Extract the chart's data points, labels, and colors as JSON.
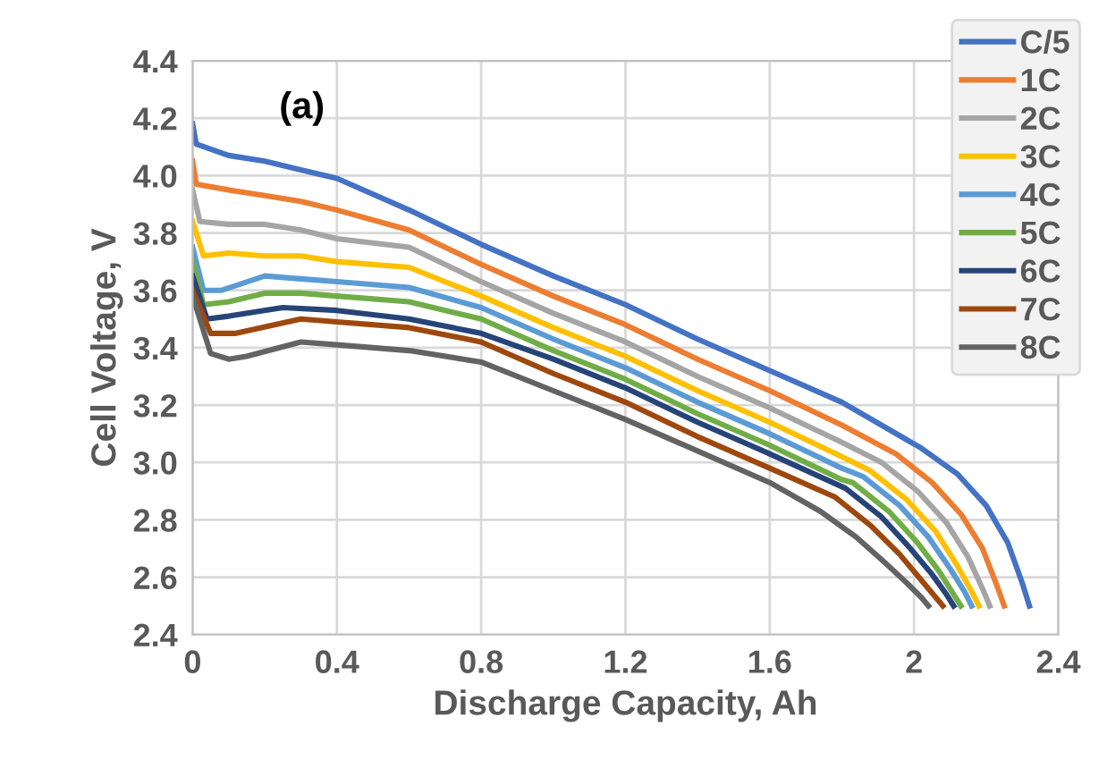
{
  "chart_data": {
    "type": "line",
    "xlabel": "Discharge Capacity, Ah",
    "ylabel": "Cell Voltage, V",
    "annotations": [
      "(a)"
    ],
    "xlim": [
      0,
      2.4
    ],
    "xticks": [
      0,
      0.4,
      0.8,
      1.2,
      1.6,
      2,
      2.4
    ],
    "ylim": [
      2.4,
      4.4
    ],
    "yticks": [
      2.4,
      2.6,
      2.8,
      {
        "value": 3,
        "label": "3.0"
      },
      3.2,
      3.4,
      3.6,
      3.8,
      {
        "value": 4,
        "label": "4.0"
      },
      4.2,
      4.4
    ],
    "grid": true,
    "legend": "right",
    "marker": "none",
    "line_style": "solid",
    "series": [
      {
        "name": "C/5",
        "color": "#4472c4",
        "x": [
          0,
          0.01,
          0.1,
          0.2,
          0.3,
          0.4,
          0.6,
          0.8,
          1.0,
          1.2,
          1.4,
          1.6,
          1.8,
          2.02,
          2.12,
          2.2,
          2.26,
          2.3,
          2.32
        ],
        "values": [
          4.18,
          4.11,
          4.07,
          4.05,
          4.02,
          3.99,
          3.88,
          3.76,
          3.65,
          3.55,
          3.43,
          3.32,
          3.21,
          3.05,
          2.96,
          2.85,
          2.72,
          2.58,
          2.5
        ]
      },
      {
        "name": "1C",
        "color": "#ed7d31",
        "x": [
          0,
          0.01,
          0.1,
          0.2,
          0.3,
          0.4,
          0.6,
          0.8,
          1.0,
          1.2,
          1.4,
          1.6,
          1.8,
          1.95,
          2.05,
          2.13,
          2.19,
          2.23,
          2.25
        ],
        "values": [
          4.05,
          3.97,
          3.95,
          3.93,
          3.91,
          3.88,
          3.81,
          3.69,
          3.58,
          3.48,
          3.36,
          3.25,
          3.13,
          3.03,
          2.93,
          2.82,
          2.7,
          2.57,
          2.5
        ]
      },
      {
        "name": "2C",
        "color": "#a5a5a5",
        "x": [
          0,
          0.02,
          0.1,
          0.2,
          0.3,
          0.4,
          0.6,
          0.8,
          1.0,
          1.2,
          1.4,
          1.6,
          1.8,
          1.91,
          2.01,
          2.09,
          2.15,
          2.19,
          2.21
        ],
        "values": [
          3.95,
          3.84,
          3.83,
          3.83,
          3.81,
          3.78,
          3.75,
          3.63,
          3.52,
          3.42,
          3.3,
          3.19,
          3.07,
          3.0,
          2.9,
          2.79,
          2.67,
          2.56,
          2.5
        ]
      },
      {
        "name": "3C",
        "color": "#ffc000",
        "x": [
          0,
          0.03,
          0.1,
          0.2,
          0.3,
          0.4,
          0.6,
          0.8,
          1.0,
          1.2,
          1.4,
          1.6,
          1.8,
          1.88,
          1.98,
          2.06,
          2.12,
          2.16,
          2.18
        ],
        "values": [
          3.84,
          3.72,
          3.73,
          3.72,
          3.72,
          3.7,
          3.68,
          3.58,
          3.47,
          3.37,
          3.25,
          3.14,
          3.02,
          2.97,
          2.87,
          2.76,
          2.64,
          2.55,
          2.5
        ]
      },
      {
        "name": "4C",
        "color": "#5b9bd5",
        "x": [
          0,
          0.03,
          0.08,
          0.2,
          0.3,
          0.4,
          0.6,
          0.8,
          1.0,
          1.2,
          1.4,
          1.6,
          1.8,
          1.86,
          1.96,
          2.04,
          2.1,
          2.14,
          2.16
        ],
        "values": [
          3.75,
          3.6,
          3.6,
          3.65,
          3.64,
          3.63,
          3.61,
          3.54,
          3.43,
          3.33,
          3.21,
          3.1,
          2.98,
          2.95,
          2.85,
          2.74,
          2.63,
          2.55,
          2.5
        ]
      },
      {
        "name": "5C",
        "color": "#70ad47",
        "x": [
          0,
          0.03,
          0.1,
          0.2,
          0.3,
          0.4,
          0.6,
          0.8,
          1.0,
          1.2,
          1.4,
          1.6,
          1.8,
          1.83,
          1.93,
          2.01,
          2.07,
          2.11,
          2.13
        ],
        "values": [
          3.7,
          3.55,
          3.56,
          3.59,
          3.59,
          3.58,
          3.56,
          3.5,
          3.39,
          3.29,
          3.17,
          3.06,
          2.94,
          2.93,
          2.83,
          2.72,
          2.62,
          2.54,
          2.5
        ]
      },
      {
        "name": "6C",
        "color": "#264478",
        "x": [
          0,
          0.04,
          0.1,
          0.25,
          0.4,
          0.6,
          0.8,
          1.0,
          1.2,
          1.4,
          1.6,
          1.81,
          1.91,
          1.99,
          2.05,
          2.09,
          2.11
        ],
        "values": [
          3.65,
          3.5,
          3.51,
          3.54,
          3.53,
          3.5,
          3.45,
          3.36,
          3.26,
          3.14,
          3.03,
          2.91,
          2.81,
          2.7,
          2.61,
          2.54,
          2.5
        ]
      },
      {
        "name": "7C",
        "color": "#9e480e",
        "x": [
          0,
          0.05,
          0.12,
          0.3,
          0.4,
          0.6,
          0.8,
          1.0,
          1.2,
          1.4,
          1.6,
          1.78,
          1.88,
          1.96,
          2.02,
          2.06,
          2.08
        ],
        "values": [
          3.6,
          3.45,
          3.45,
          3.5,
          3.49,
          3.47,
          3.42,
          3.31,
          3.21,
          3.09,
          2.98,
          2.88,
          2.78,
          2.68,
          2.59,
          2.53,
          2.5
        ]
      },
      {
        "name": "8C",
        "color": "#636363",
        "x": [
          0,
          0.05,
          0.1,
          0.15,
          0.3,
          0.4,
          0.6,
          0.8,
          1.0,
          1.2,
          1.4,
          1.6,
          1.74,
          1.84,
          1.92,
          1.98,
          2.02,
          2.04
        ],
        "values": [
          3.58,
          3.38,
          3.36,
          3.37,
          3.42,
          3.41,
          3.39,
          3.35,
          3.25,
          3.15,
          3.04,
          2.93,
          2.83,
          2.74,
          2.65,
          2.58,
          2.53,
          2.5
        ]
      }
    ]
  }
}
